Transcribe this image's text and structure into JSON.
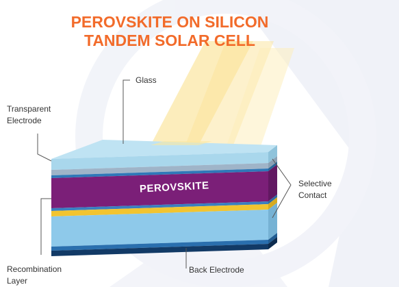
{
  "title": [
    "PEROVSKITE ON SILICON",
    "TANDEM SOLAR CELL"
  ],
  "labels": {
    "glass": [
      "Glass"
    ],
    "transparent_electrode": [
      "Transparent",
      "Electrode"
    ],
    "perovskite": [
      "PEROVSKITE"
    ],
    "selective_contact": [
      "Selective",
      "Contact"
    ],
    "recombination_layer": [
      "Recombination",
      "Layer"
    ],
    "back_electrode": [
      "Back Electrode"
    ]
  }
}
